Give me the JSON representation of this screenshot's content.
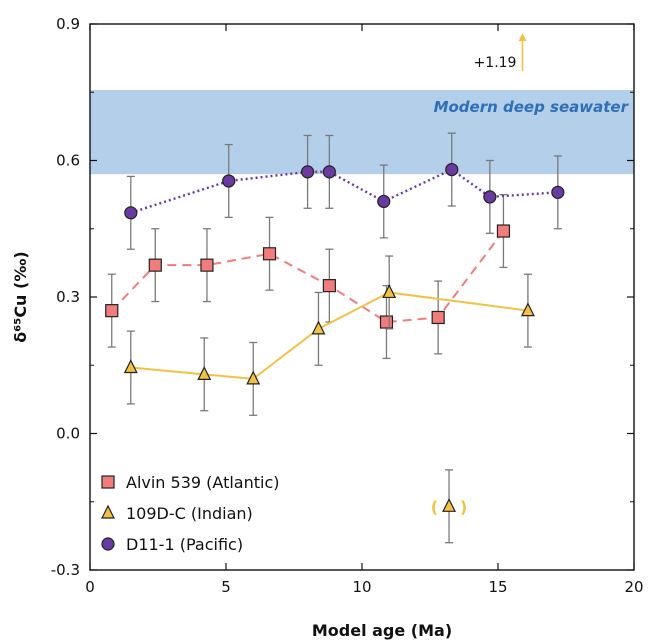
{
  "chart_data": {
    "type": "scatter",
    "xlabel": "Model age (Ma)",
    "ylabel": "δ⁶⁵Cu (‰)",
    "xlim": [
      0,
      20
    ],
    "ylim": [
      -0.3,
      0.9
    ],
    "x_ticks": [
      "0",
      "5",
      "10",
      "15",
      "20"
    ],
    "y_ticks": [
      "-0.3",
      "0.0",
      "0.3",
      "0.6",
      "0.9"
    ],
    "grid": false,
    "band": {
      "label": "Modern deep seawater",
      "y_range": [
        0.57,
        0.755
      ],
      "color": "#b3cfe9"
    },
    "annotation": {
      "text": "+1.19",
      "x": 15.9,
      "y": 0.88
    },
    "legend_position": "bottom-left",
    "series": [
      {
        "name": "Alvin 539 (Atlantic)",
        "marker": "square",
        "color": "#f07c7c",
        "line": "dashed",
        "points": [
          {
            "x": 0.8,
            "y": 0.27,
            "err": 0.08
          },
          {
            "x": 2.4,
            "y": 0.37,
            "err": 0.08
          },
          {
            "x": 4.3,
            "y": 0.37,
            "err": 0.08
          },
          {
            "x": 6.6,
            "y": 0.395,
            "err": 0.08
          },
          {
            "x": 8.8,
            "y": 0.325,
            "err": 0.08
          },
          {
            "x": 10.9,
            "y": 0.245,
            "err": 0.08
          },
          {
            "x": 12.8,
            "y": 0.255,
            "err": 0.08
          },
          {
            "x": 15.2,
            "y": 0.445,
            "err": 0.08
          }
        ]
      },
      {
        "name": "109D-C (Indian)",
        "marker": "triangle",
        "color": "#f2c245",
        "line": "solid",
        "points": [
          {
            "x": 1.5,
            "y": 0.145,
            "err": 0.08
          },
          {
            "x": 4.2,
            "y": 0.13,
            "err": 0.08
          },
          {
            "x": 6.0,
            "y": 0.12,
            "err": 0.08
          },
          {
            "x": 8.4,
            "y": 0.23,
            "err": 0.08
          },
          {
            "x": 11.0,
            "y": 0.31,
            "err": 0.08
          },
          {
            "x": 16.1,
            "y": 0.27,
            "err": 0.08
          }
        ],
        "outlier": {
          "x": 13.2,
          "y": -0.16,
          "err": 0.08,
          "label_open": "(",
          "label_close": ")"
        }
      },
      {
        "name": "D11-1 (Pacific)",
        "marker": "circle",
        "color": "#6a3aa0",
        "line": "dotted",
        "points": [
          {
            "x": 1.5,
            "y": 0.485,
            "err": 0.08
          },
          {
            "x": 5.1,
            "y": 0.555,
            "err": 0.08
          },
          {
            "x": 8.0,
            "y": 0.575,
            "err": 0.08
          },
          {
            "x": 8.8,
            "y": 0.575,
            "err": 0.08
          },
          {
            "x": 10.8,
            "y": 0.51,
            "err": 0.08
          },
          {
            "x": 13.3,
            "y": 0.58,
            "err": 0.08
          },
          {
            "x": 14.7,
            "y": 0.52,
            "err": 0.08
          },
          {
            "x": 17.2,
            "y": 0.53,
            "err": 0.08
          }
        ]
      }
    ]
  }
}
